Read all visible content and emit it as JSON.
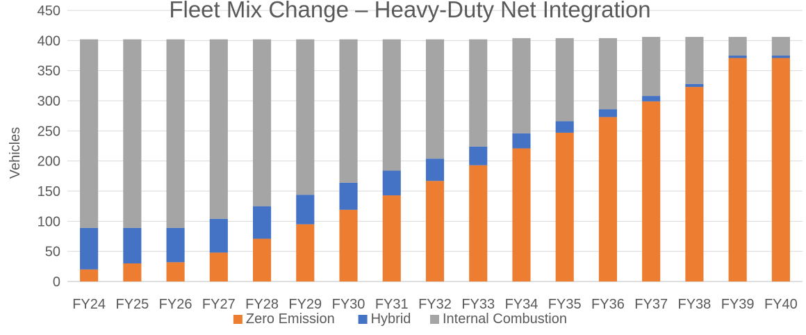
{
  "chart_data": {
    "type": "bar",
    "stacked": true,
    "title": "Fleet Mix Change – Heavy-Duty Net Integration",
    "xlabel": "",
    "ylabel": "Vehicles",
    "ylim": [
      0,
      450
    ],
    "yticks": [
      0,
      50,
      100,
      150,
      200,
      250,
      300,
      350,
      400,
      450
    ],
    "grid": true,
    "legend_position": "bottom",
    "categories": [
      "FY24",
      "FY25",
      "FY26",
      "FY27",
      "FY28",
      "FY29",
      "FY30",
      "FY31",
      "FY32",
      "FY33",
      "FY34",
      "FY35",
      "FY36",
      "FY37",
      "FY38",
      "FY39",
      "FY40"
    ],
    "series": [
      {
        "name": "Zero Emission",
        "color": "#ED7D31",
        "values": [
          20,
          30,
          32,
          48,
          71,
          95,
          119,
          143,
          167,
          193,
          221,
          247,
          273,
          299,
          323,
          371,
          371
        ]
      },
      {
        "name": "Hybrid",
        "color": "#4472C4",
        "values": [
          69,
          59,
          57,
          56,
          54,
          49,
          45,
          41,
          37,
          31,
          25,
          19,
          13,
          9,
          5,
          4,
          4
        ]
      },
      {
        "name": "Internal Combustion",
        "color": "#A5A5A5",
        "values": [
          313,
          313,
          313,
          298,
          277,
          258,
          238,
          218,
          198,
          178,
          158,
          138,
          118,
          98,
          78,
          31,
          31
        ]
      }
    ]
  }
}
